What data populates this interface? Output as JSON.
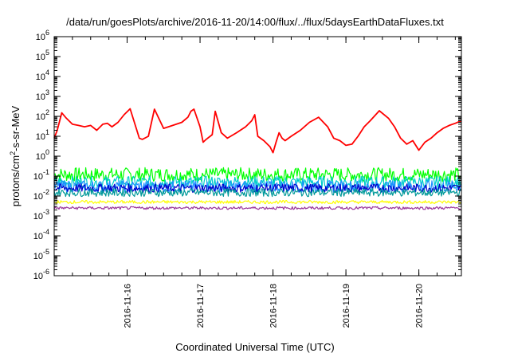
{
  "chart_data": {
    "type": "line",
    "title": "/data/run/goesPlots/archive/2016-11-20/14:00/flux/../flux/5daysEarthDataFluxes.txt",
    "xlabel": "Coordinated Universal Time (UTC)",
    "ylabel_main": "protons/cm",
    "ylabel_sup": "2",
    "ylabel_rest": "-s-sr-MeV",
    "yscale": "log",
    "ylim": [
      1e-06,
      1000000.0
    ],
    "xlim": [
      "2016-11-15T00:00",
      "2016-11-20T14:00"
    ],
    "grid": false,
    "legend": "none",
    "y_ticks": [
      {
        "value": 1e-06,
        "base": "10",
        "exp": "-6"
      },
      {
        "value": 1e-05,
        "base": "10",
        "exp": "-5"
      },
      {
        "value": 0.0001,
        "base": "10",
        "exp": "-4"
      },
      {
        "value": 0.001,
        "base": "10",
        "exp": "-3"
      },
      {
        "value": 0.01,
        "base": "10",
        "exp": "-2"
      },
      {
        "value": 0.1,
        "base": "10",
        "exp": "-1"
      },
      {
        "value": 1,
        "base": "10",
        "exp": "0"
      },
      {
        "value": 10,
        "base": "10",
        "exp": "1"
      },
      {
        "value": 100,
        "base": "10",
        "exp": "2"
      },
      {
        "value": 1000,
        "base": "10",
        "exp": "3"
      },
      {
        "value": 10000,
        "base": "10",
        "exp": "4"
      },
      {
        "value": 100000,
        "base": "10",
        "exp": "5"
      },
      {
        "value": 1000000,
        "base": "10",
        "exp": "6"
      }
    ],
    "x_ticks": [
      {
        "value": "2016-11-16T00:00",
        "label": "2016-11-16"
      },
      {
        "value": "2016-11-17T00:00",
        "label": "2016-11-17"
      },
      {
        "value": "2016-11-18T00:00",
        "label": "2016-11-18"
      },
      {
        "value": "2016-11-19T00:00",
        "label": "2016-11-19"
      },
      {
        "value": "2016-11-20T00:00",
        "label": "2016-11-20"
      }
    ],
    "series": [
      {
        "color": "#ff0000",
        "x": [
          "2016-11-15T00:00",
          "2016-11-15T01:00",
          "2016-11-15T02:30",
          "2016-11-15T04:00",
          "2016-11-15T06:00",
          "2016-11-15T08:00",
          "2016-11-15T10:00",
          "2016-11-15T12:00",
          "2016-11-15T14:00",
          "2016-11-15T16:00",
          "2016-11-15T17:30",
          "2016-11-15T19:00",
          "2016-11-15T21:00",
          "2016-11-15T23:00",
          "2016-11-16T01:00",
          "2016-11-16T03:00",
          "2016-11-16T04:00",
          "2016-11-16T05:00",
          "2016-11-16T07:00",
          "2016-11-16T09:00",
          "2016-11-16T12:00",
          "2016-11-16T15:00",
          "2016-11-16T18:00",
          "2016-11-16T20:00",
          "2016-11-16T21:00",
          "2016-11-16T22:00",
          "2016-11-17T00:00",
          "2016-11-17T01:00",
          "2016-11-17T02:00",
          "2016-11-17T04:00",
          "2016-11-17T05:00",
          "2016-11-17T07:00",
          "2016-11-17T09:00",
          "2016-11-17T12:00",
          "2016-11-17T15:00",
          "2016-11-17T17:00",
          "2016-11-17T18:00",
          "2016-11-17T19:00",
          "2016-11-17T21:00",
          "2016-11-17T23:00",
          "2016-11-18T00:00",
          "2016-11-18T01:00",
          "2016-11-18T02:00",
          "2016-11-18T03:00",
          "2016-11-18T04:00",
          "2016-11-18T06:00",
          "2016-11-18T09:00",
          "2016-11-18T12:00",
          "2016-11-18T15:00",
          "2016-11-18T18:00",
          "2016-11-18T20:00",
          "2016-11-18T22:00",
          "2016-11-19T00:00",
          "2016-11-19T02:00",
          "2016-11-19T04:00",
          "2016-11-19T06:00",
          "2016-11-19T08:00",
          "2016-11-19T11:00",
          "2016-11-19T14:00",
          "2016-11-19T16:00",
          "2016-11-19T18:00",
          "2016-11-19T20:00",
          "2016-11-19T22:00",
          "2016-11-20T00:00",
          "2016-11-20T02:00",
          "2016-11-20T04:00",
          "2016-11-20T06:00",
          "2016-11-20T08:00",
          "2016-11-20T10:00",
          "2016-11-20T12:00",
          "2016-11-20T14:00"
        ],
        "y": [
          8,
          20,
          150,
          80,
          40,
          35,
          30,
          35,
          20,
          40,
          45,
          30,
          50,
          120,
          240,
          25,
          8,
          7,
          10,
          230,
          25,
          35,
          50,
          90,
          180,
          230,
          30,
          5,
          7,
          12,
          180,
          15,
          8,
          15,
          30,
          60,
          120,
          10,
          6,
          3,
          1.5,
          5,
          15,
          8,
          6,
          10,
          20,
          50,
          90,
          30,
          8,
          6,
          3.5,
          4,
          10,
          30,
          60,
          190,
          80,
          30,
          8,
          4,
          6,
          2,
          5,
          8,
          15,
          25,
          35,
          45,
          60
        ]
      },
      {
        "color": "#00ff00",
        "x": [
          "2016-11-15T00:00",
          "2016-11-16T00:00",
          "2016-11-17T00:00",
          "2016-11-18T00:00",
          "2016-11-19T00:00",
          "2016-11-20T00:00",
          "2016-11-20T14:00"
        ],
        "y": [
          0.12,
          0.12,
          0.12,
          0.12,
          0.12,
          0.12,
          0.12
        ],
        "noise": 0.35
      },
      {
        "color": "#00cccc",
        "x": [
          "2016-11-15T00:00",
          "2016-11-16T00:00",
          "2016-11-17T00:00",
          "2016-11-18T00:00",
          "2016-11-19T00:00",
          "2016-11-20T00:00",
          "2016-11-20T14:00"
        ],
        "y": [
          0.05,
          0.05,
          0.05,
          0.05,
          0.05,
          0.05,
          0.05
        ],
        "noise": 0.3
      },
      {
        "color": "#1e90ff",
        "x": [
          "2016-11-15T00:00",
          "2016-11-16T00:00",
          "2016-11-17T00:00",
          "2016-11-18T00:00",
          "2016-11-19T00:00",
          "2016-11-20T00:00",
          "2016-11-20T14:00"
        ],
        "y": [
          0.03,
          0.03,
          0.03,
          0.03,
          0.03,
          0.03,
          0.03
        ],
        "noise": 0.3
      },
      {
        "color": "#0000cc",
        "x": [
          "2016-11-15T00:00",
          "2016-11-16T00:00",
          "2016-11-17T00:00",
          "2016-11-18T00:00",
          "2016-11-19T00:00",
          "2016-11-20T00:00",
          "2016-11-20T14:00"
        ],
        "y": [
          0.025,
          0.025,
          0.025,
          0.025,
          0.025,
          0.025,
          0.025
        ],
        "noise": 0.22
      },
      {
        "color": "#009999",
        "x": [
          "2016-11-15T00:00",
          "2016-11-16T00:00",
          "2016-11-17T00:00",
          "2016-11-18T00:00",
          "2016-11-19T00:00",
          "2016-11-20T00:00",
          "2016-11-20T14:00"
        ],
        "y": [
          0.015,
          0.015,
          0.015,
          0.015,
          0.015,
          0.015,
          0.015
        ],
        "noise": 0.2
      },
      {
        "color": "#ffff00",
        "x": [
          "2016-11-15T00:00",
          "2016-11-16T00:00",
          "2016-11-17T00:00",
          "2016-11-18T00:00",
          "2016-11-19T00:00",
          "2016-11-20T00:00",
          "2016-11-20T14:00"
        ],
        "y": [
          0.005,
          0.005,
          0.005,
          0.005,
          0.005,
          0.005,
          0.005
        ],
        "noise": 0.08
      },
      {
        "color": "#993399",
        "x": [
          "2016-11-15T00:00",
          "2016-11-16T00:00",
          "2016-11-17T00:00",
          "2016-11-18T00:00",
          "2016-11-19T00:00",
          "2016-11-20T00:00",
          "2016-11-20T14:00"
        ],
        "y": [
          0.0025,
          0.0025,
          0.0025,
          0.0025,
          0.0025,
          0.0025,
          0.0025
        ],
        "noise": 0.07
      }
    ]
  }
}
